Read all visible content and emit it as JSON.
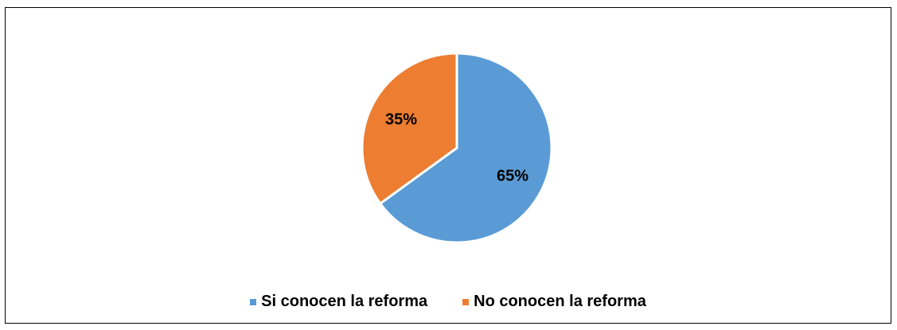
{
  "chart_data": {
    "type": "pie",
    "title": "",
    "slices": [
      {
        "label": "Si conocen la reforma",
        "value": 65,
        "data_label": "65%",
        "color": "#5B9BD5"
      },
      {
        "label": "No conocen la reforma",
        "value": 35,
        "data_label": "35%",
        "color": "#ED7D31"
      }
    ],
    "start": "12 o'clock, clockwise",
    "legend_position": "bottom"
  },
  "legend": {
    "items": [
      {
        "label": "Si conocen la reforma",
        "color": "#5B9BD5"
      },
      {
        "label": "No conocen la reforma",
        "color": "#ED7D31"
      }
    ]
  }
}
